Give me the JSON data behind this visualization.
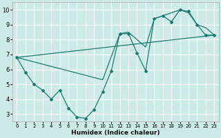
{
  "xlabel": "Humidex (Indice chaleur)",
  "background_color": "#cceae7",
  "grid_color": "#ffffff",
  "line_color": "#1a7a6e",
  "xlim": [
    -0.5,
    23.5
  ],
  "ylim": [
    2.5,
    10.5
  ],
  "xticks": [
    0,
    1,
    2,
    3,
    4,
    5,
    6,
    7,
    8,
    9,
    10,
    11,
    12,
    13,
    14,
    15,
    16,
    17,
    18,
    19,
    20,
    21,
    22,
    23
  ],
  "yticks": [
    3,
    4,
    5,
    6,
    7,
    8,
    9,
    10
  ],
  "line1_x": [
    0,
    1,
    2,
    3,
    4,
    5,
    6,
    7,
    8,
    9,
    10,
    11,
    12,
    13,
    14,
    15,
    16,
    17,
    18,
    19,
    20,
    21,
    22,
    23
  ],
  "line1_y": [
    6.8,
    5.8,
    5.0,
    4.6,
    4.0,
    4.6,
    3.4,
    2.8,
    2.7,
    3.3,
    4.5,
    5.9,
    8.4,
    8.4,
    7.1,
    5.9,
    9.4,
    9.6,
    9.2,
    10.0,
    9.9,
    9.0,
    8.3,
    8.3
  ],
  "line2_x": [
    0,
    23
  ],
  "line2_y": [
    6.8,
    8.3
  ],
  "line3_x": [
    0,
    10,
    12,
    13,
    15,
    16,
    17,
    19,
    20,
    21,
    22,
    23
  ],
  "line3_y": [
    6.8,
    5.3,
    8.4,
    8.5,
    7.5,
    9.4,
    9.6,
    10.0,
    9.8,
    9.0,
    8.8,
    8.3
  ]
}
